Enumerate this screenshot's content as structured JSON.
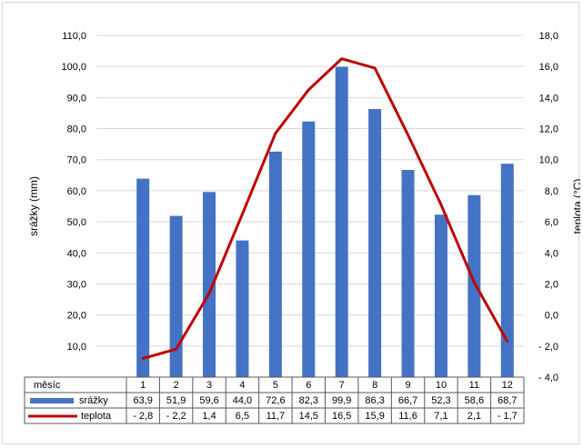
{
  "chart_data": {
    "type": "bar+line",
    "categories": [
      "1",
      "2",
      "3",
      "4",
      "5",
      "6",
      "7",
      "8",
      "9",
      "10",
      "11",
      "12"
    ],
    "table_header": "měsíc",
    "series": [
      {
        "name": "srážky",
        "type": "bar",
        "axis": "left",
        "color": "#4472c4",
        "values": [
          63.9,
          51.9,
          59.6,
          44.0,
          72.6,
          82.3,
          99.9,
          86.3,
          66.7,
          52.3,
          58.6,
          68.7
        ],
        "labels": [
          "63,9",
          "51,9",
          "59,6",
          "44,0",
          "72,6",
          "82,3",
          "99,9",
          "86,3",
          "66,7",
          "52,3",
          "58,6",
          "68,7"
        ]
      },
      {
        "name": "teplota",
        "type": "line",
        "axis": "right",
        "color": "#c00000",
        "values": [
          -2.8,
          -2.2,
          1.4,
          6.5,
          11.7,
          14.5,
          16.5,
          15.9,
          11.6,
          7.1,
          2.1,
          -1.7
        ],
        "labels": [
          "- 2,8",
          "- 2,2",
          "1,4",
          "6,5",
          "11,7",
          "14,5",
          "16,5",
          "15,9",
          "11,6",
          "7,1",
          "2,1",
          "- 1,7"
        ]
      }
    ],
    "y_left": {
      "label": "srážky (mm)",
      "ylim": [
        0,
        110
      ],
      "ticks": [
        10,
        20,
        30,
        40,
        50,
        60,
        70,
        80,
        90,
        100,
        110
      ],
      "tick_labels": [
        "10,0",
        "20,0",
        "30,0",
        "40,0",
        "50,0",
        "60,0",
        "70,0",
        "80,0",
        "90,0",
        "100,0",
        "110,0"
      ]
    },
    "y_right": {
      "label": "teplota (°C)",
      "ylim": [
        -4,
        18
      ],
      "ticks": [
        -4,
        -2,
        0,
        2,
        4,
        6,
        8,
        10,
        12,
        14,
        16,
        18
      ],
      "tick_labels": [
        "- 4,0",
        "- 2,0",
        "0,0",
        "2,0",
        "4,0",
        "6,0",
        "8,0",
        "10,0",
        "12,0",
        "14,0",
        "16,0",
        "18,0"
      ]
    },
    "grid": true,
    "legend": "data-table"
  }
}
